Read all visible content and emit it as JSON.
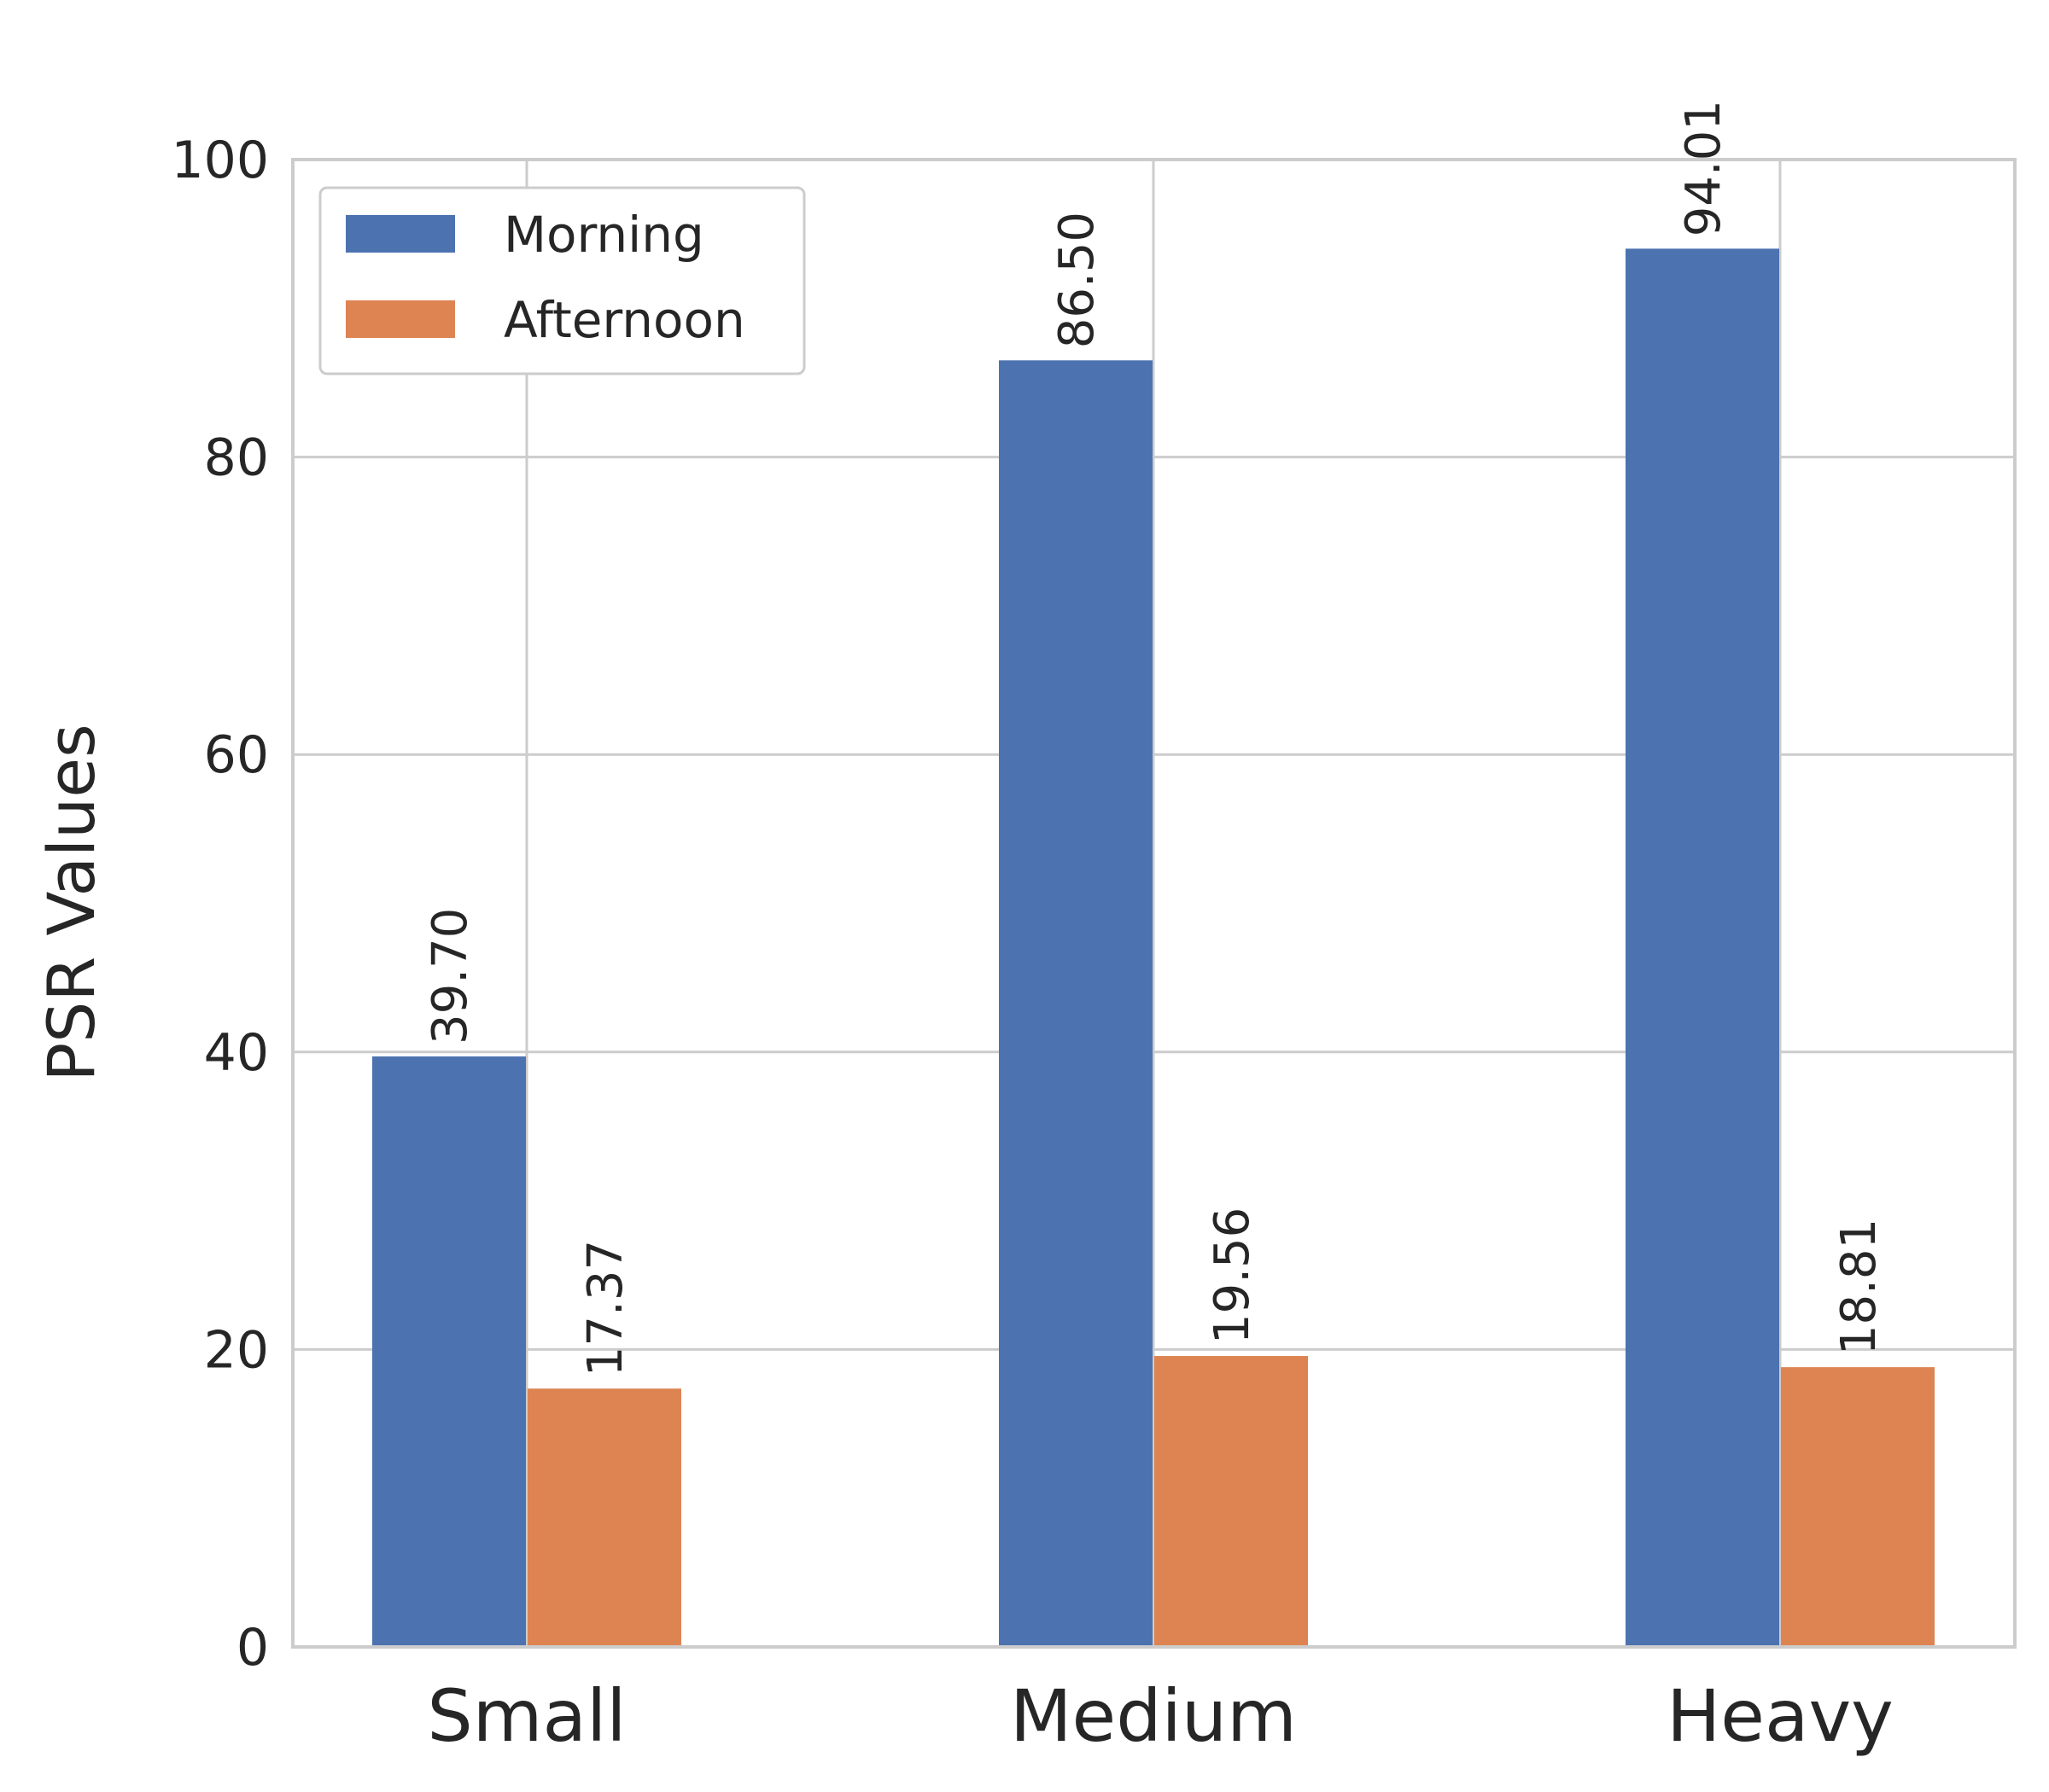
{
  "chart_data": {
    "type": "bar",
    "categories": [
      "Small",
      "Medium",
      "Heavy"
    ],
    "series": [
      {
        "name": "Morning",
        "values": [
          39.7,
          86.5,
          94.01
        ],
        "color": "#4c72b0"
      },
      {
        "name": "Afternoon",
        "values": [
          17.37,
          19.56,
          18.81
        ],
        "color": "#dd8452"
      }
    ],
    "data_labels": [
      [
        "39.70",
        "86.50",
        "94.01"
      ],
      [
        "17.37",
        "19.56",
        "18.81"
      ]
    ],
    "title": "",
    "xlabel": "",
    "ylabel": "PSR Values",
    "ylim": [
      0,
      100
    ],
    "yticks": [
      0,
      20,
      40,
      60,
      80,
      100
    ],
    "grid": true,
    "legend_position": "upper-left"
  }
}
